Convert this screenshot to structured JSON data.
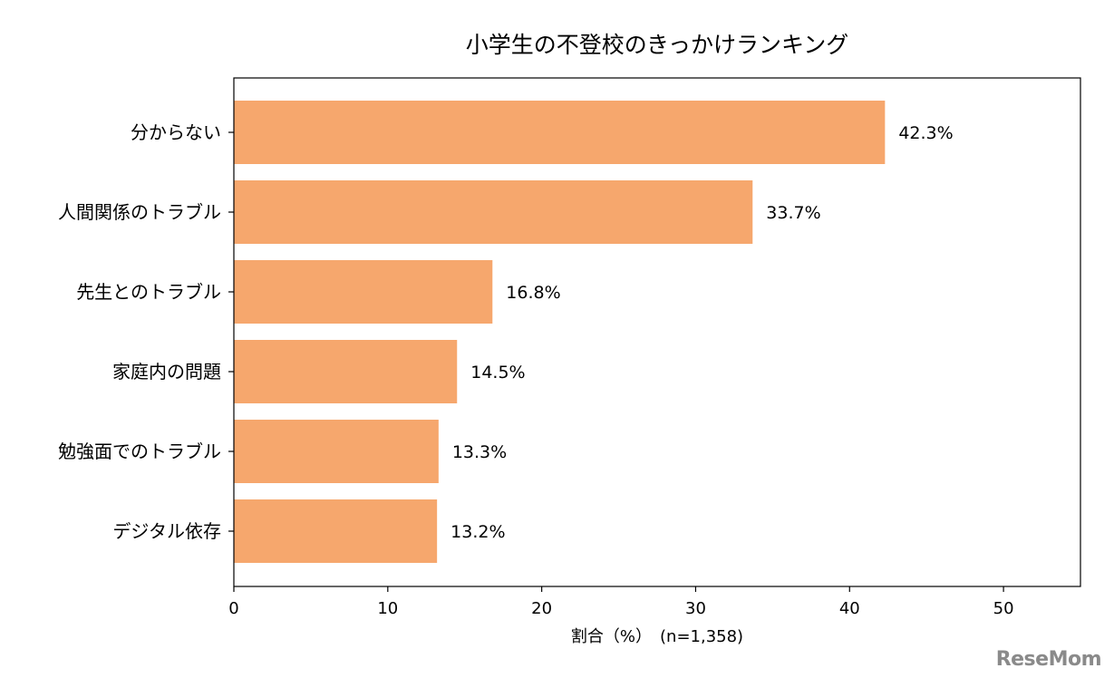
{
  "chart_data": {
    "type": "bar",
    "orientation": "horizontal",
    "title": "小学生の不登校のきっかけランキング",
    "xlabel": "割合（%）　(n=1,358)",
    "ylabel": "",
    "categories": [
      "分からない",
      "人間関係のトラブル",
      "先生とのトラブル",
      "家庭内の問題",
      "勉強面でのトラブル",
      "デジタル依存"
    ],
    "values": [
      42.3,
      33.7,
      16.8,
      14.5,
      13.3,
      13.2
    ],
    "value_labels": [
      "42.3%",
      "33.7%",
      "16.8%",
      "14.5%",
      "13.3%",
      "13.2%"
    ],
    "xlim": [
      0,
      55
    ],
    "xticks": [
      0,
      10,
      20,
      30,
      40,
      50
    ],
    "grid": false,
    "bar_color": "#f6a76d"
  },
  "watermark": "ReseMom"
}
